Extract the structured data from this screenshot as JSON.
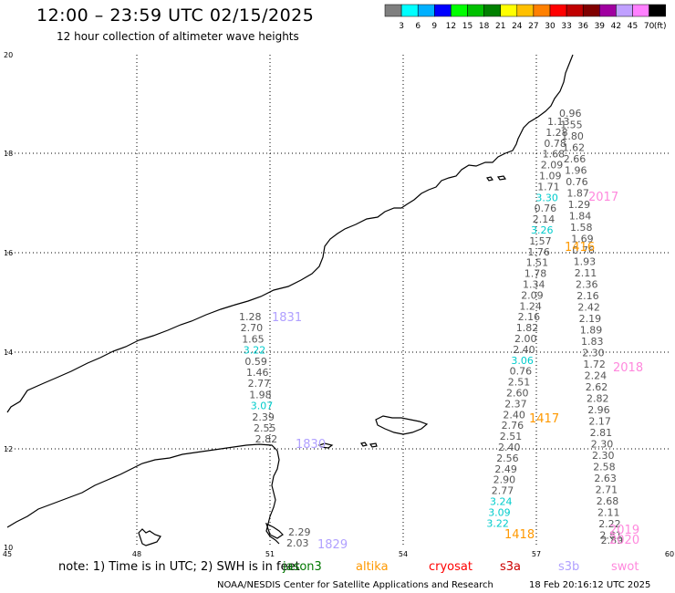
{
  "header": {
    "title": "12:00 – 23:59 UTC 02/15/2025",
    "subtitle": "12 hour collection of altimeter wave heights"
  },
  "colorbar": {
    "unit": "(ft)",
    "colors": [
      "#7f7f7f",
      "#00ffff",
      "#00b0ff",
      "#0000ff",
      "#00ff00",
      "#00c000",
      "#008000",
      "#ffff00",
      "#ffc000",
      "#ff8000",
      "#ff0000",
      "#c00000",
      "#800000",
      "#a000a0",
      "#c0a0ff",
      "#ff80ff",
      "#000000"
    ],
    "labels": [
      "3",
      "6",
      "9",
      "12",
      "15",
      "18",
      "21",
      "24",
      "27",
      "30",
      "33",
      "36",
      "39",
      "42",
      "45",
      "70"
    ]
  },
  "axes": {
    "lon_labels": [
      "45",
      "48",
      "51",
      "54",
      "57",
      "60"
    ],
    "lat_labels": [
      "20",
      "18",
      "16",
      "14",
      "12",
      "10"
    ]
  },
  "passes": [
    {
      "label": "1831",
      "color": "#b0a0ff"
    },
    {
      "label": "1830",
      "color": "#b0a0ff"
    },
    {
      "label": "1829",
      "color": "#b0a0ff"
    },
    {
      "label": "1418",
      "color": "#ff9900"
    },
    {
      "label": "1417",
      "color": "#ff9900"
    },
    {
      "label": "1416",
      "color": "#ff9900"
    },
    {
      "label": "2017",
      "color": "#ff88dd"
    },
    {
      "label": "2018",
      "color": "#ff88dd"
    },
    {
      "label": "2019",
      "color": "#ff88dd"
    },
    {
      "label": "2020",
      "color": "#ff88dd"
    }
  ],
  "tracks": [
    {
      "name": "track-1831",
      "values": [
        "1.28",
        "2.70",
        "1.65",
        "3.22",
        "0.59",
        "1.46",
        "2.77",
        "1.98",
        "3.07",
        "2.39",
        "2.55",
        "2.82"
      ],
      "colors": [
        "g",
        "g",
        "g",
        "c",
        "g",
        "g",
        "g",
        "g",
        "c",
        "g",
        "g",
        "g"
      ]
    },
    {
      "name": "track-1829",
      "values": [
        "2.29",
        "2.03"
      ],
      "colors": [
        "g",
        "g"
      ]
    },
    {
      "name": "track-1416",
      "values": [
        "0.96",
        "1.13",
        "1.55",
        "1.28",
        "1.80",
        "0.78",
        "1.62",
        "1.68",
        "2.66",
        "2.09",
        "1.96",
        "1.09",
        "0.76",
        "1.71",
        "1.87",
        "3.30",
        "1.29",
        "0.76",
        "1.84",
        "2.14",
        "1.58",
        "3.26",
        "1.69",
        "1.57",
        "0.76",
        "1.76",
        "1.93",
        "1.51",
        "2.11",
        "1.78",
        "2.36",
        "1.34",
        "2.16",
        "2.09",
        "2.42",
        "1.24",
        "2.19",
        "2.16",
        "1.89",
        "1.82",
        "1.83",
        "2.00",
        "2.30",
        "2.40",
        "1.72",
        "3.06",
        "2.24",
        "0.76",
        "2.62",
        "2.51",
        "2.82",
        "2.60",
        "2.96",
        "2.37",
        "2.17",
        "2.40",
        "2.81",
        "2.76",
        "2.30",
        "2.51",
        "2.30",
        "2.40",
        "2.58",
        "2.56",
        "2.63",
        "2.49",
        "2.71",
        "2.90",
        "2.68",
        "2.77",
        "2.11",
        "3.24",
        "2.22",
        "3.09",
        "2.81",
        "3.22",
        "2.89"
      ],
      "colors": [
        "g",
        "g",
        "g",
        "g",
        "g",
        "g",
        "g",
        "g",
        "g",
        "g",
        "g",
        "g",
        "g",
        "g",
        "g",
        "c",
        "g",
        "g",
        "g",
        "g",
        "g",
        "c",
        "g",
        "g",
        "g",
        "g",
        "g",
        "g",
        "g",
        "g",
        "g",
        "g",
        "g",
        "g",
        "g",
        "g",
        "g",
        "g",
        "g",
        "g",
        "g",
        "g",
        "g",
        "g",
        "g",
        "c",
        "g",
        "g",
        "g",
        "g",
        "g",
        "g",
        "g",
        "g",
        "g",
        "g",
        "g",
        "g",
        "g",
        "g",
        "g",
        "g",
        "g",
        "g",
        "g",
        "g",
        "g",
        "g",
        "g",
        "g",
        "g",
        "c",
        "g",
        "c",
        "g",
        "c",
        "g"
      ]
    }
  ],
  "legend": {
    "note_prefix": "note:  1) Time is in UTC;  2) SWH is in feet",
    "satellites": [
      {
        "name": "jason3",
        "color": "#007700"
      },
      {
        "name": "altika",
        "color": "#ff9900"
      },
      {
        "name": "cryosat",
        "color": "#ff0000"
      },
      {
        "name": "s3a",
        "color": "#cc0000"
      },
      {
        "name": "s3b",
        "color": "#b0a0ff"
      },
      {
        "name": "swot",
        "color": "#ff88dd"
      }
    ],
    "credit": "NOAA/NESDIS Center for Satellite Applications and Research",
    "timestamp": "18 Feb 20:16:12 UTC 2025"
  }
}
